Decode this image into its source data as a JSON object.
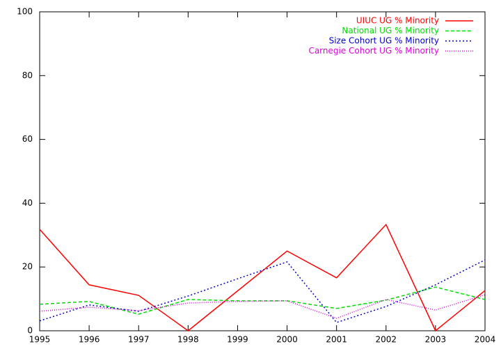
{
  "chart_data": {
    "type": "line",
    "x": [
      1995,
      1996,
      1997,
      1998,
      1999,
      2000,
      2001,
      2002,
      2003,
      2004
    ],
    "series": [
      {
        "name": "UIUC UG % Minority",
        "color": "#ff0000",
        "dash": "solid",
        "values": [
          31.8,
          14.4,
          11.1,
          0,
          12.5,
          25.0,
          16.6,
          33.3,
          0,
          12.6
        ]
      },
      {
        "name": "National UG % Minority",
        "color": "#00dd00",
        "dash": "dashed",
        "values": [
          8.3,
          9.2,
          5.2,
          9.8,
          9.4,
          9.4,
          7.0,
          9.6,
          13.7,
          9.8
        ]
      },
      {
        "name": "Size Cohort UG % Minority",
        "color": "#0000cc",
        "dash": "dotted",
        "values": [
          3.1,
          8.1,
          6.1,
          10.9,
          16.3,
          21.6,
          2.6,
          7.6,
          14.4,
          22.2
        ]
      },
      {
        "name": "Carnegie Cohort UG % Minority",
        "color": "#dd00dd",
        "dash": "fine-dotted",
        "values": [
          6.1,
          7.4,
          6.3,
          8.7,
          9.2,
          9.4,
          3.9,
          9.8,
          6.5,
          11.3
        ]
      }
    ],
    "xlim": [
      1995,
      2004
    ],
    "xticks": [
      1995,
      1996,
      1997,
      1998,
      1999,
      2000,
      2001,
      2002,
      2003,
      2004
    ],
    "ylim": [
      0,
      100
    ],
    "yticks": [
      0,
      20,
      40,
      60,
      80,
      100
    ],
    "grid": false,
    "legend": "top-right"
  }
}
